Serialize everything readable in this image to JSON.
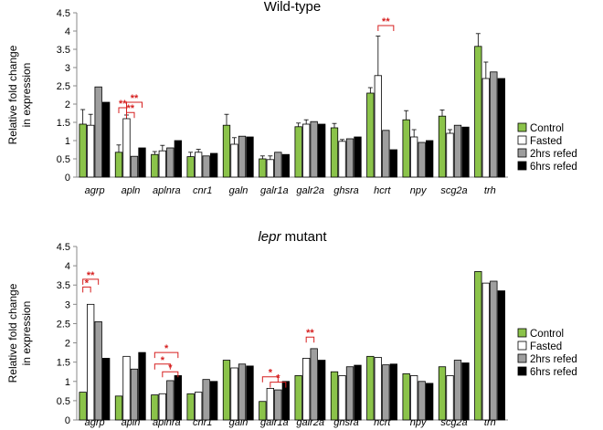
{
  "colors": {
    "control": "#8bc34a",
    "fasted": "#ffffff",
    "refed2": "#9e9e9e",
    "refed6": "#000000",
    "significance": "#d61f1f"
  },
  "chart_data": [
    {
      "type": "bar",
      "title": "Wild-type",
      "title_parts": [
        {
          "text": "Wild-type",
          "italic": false
        }
      ],
      "ylabel": "Relative fold change in expression",
      "ylabel_lines": [
        "Relative fold change",
        "in expression"
      ],
      "ylim": [
        0,
        4.5
      ],
      "yticks": [
        "0",
        "0.5",
        "1",
        "1.5",
        "2",
        "2.5",
        "3",
        "3.5",
        "4",
        "4.5"
      ],
      "categories": [
        "agrp",
        "apln",
        "aplnra",
        "cnr1",
        "galn",
        "galr1a",
        "galr2a",
        "ghsra",
        "hcrt",
        "npy",
        "scg2a",
        "trh"
      ],
      "legend": {
        "position": "right"
      },
      "series": [
        {
          "name": "Control",
          "color": "#8bc34a",
          "values": [
            1.45,
            0.68,
            0.62,
            0.56,
            1.42,
            0.5,
            1.38,
            1.35,
            2.3,
            1.57,
            1.67,
            3.58
          ],
          "errors": [
            0.4,
            0.2,
            0.08,
            0.12,
            0.3,
            0.08,
            0.1,
            0.12,
            0.15,
            0.25,
            0.17,
            0.35
          ]
        },
        {
          "name": "Fasted",
          "color": "#ffffff",
          "values": [
            1.42,
            1.6,
            0.72,
            0.68,
            0.9,
            0.48,
            1.45,
            0.98,
            2.78,
            1.1,
            1.2,
            2.7
          ],
          "errors": [
            0.3,
            0.1,
            0.15,
            0.08,
            0.18,
            0.1,
            0.12,
            0.05,
            1.08,
            0.2,
            0.1,
            0.45
          ]
        },
        {
          "name": "2hrs refed",
          "color": "#9e9e9e",
          "values": [
            2.47,
            0.57,
            0.8,
            0.58,
            1.12,
            0.68,
            1.52,
            1.05,
            1.28,
            0.95,
            1.42,
            2.88
          ]
        },
        {
          "name": "6hrs refed",
          "color": "#000000",
          "values": [
            2.05,
            0.8,
            1.0,
            0.65,
            1.1,
            0.62,
            1.45,
            1.1,
            0.75,
            1.0,
            1.37,
            2.7
          ]
        }
      ],
      "significance": [
        {
          "category": "apln",
          "from": 0,
          "to": 1,
          "label": "**",
          "y": 1.9
        },
        {
          "category": "apln",
          "from": 1,
          "to": 2,
          "label": "**",
          "y": 1.77
        },
        {
          "category": "apln",
          "from": 1,
          "to": 3,
          "label": "**",
          "y": 2.05
        },
        {
          "category": "hcrt",
          "from": 1,
          "to": 3,
          "label": "**",
          "y": 4.15
        }
      ]
    },
    {
      "type": "bar",
      "title": "lepr mutant",
      "title_parts": [
        {
          "text": "lepr",
          "italic": true
        },
        {
          "text": " mutant",
          "italic": false
        }
      ],
      "ylabel": "Relative fold change in expression",
      "ylabel_lines": [
        "Relative fold change",
        "in expression"
      ],
      "ylim": [
        0,
        4.5
      ],
      "yticks": [
        "0",
        "0.5",
        "1",
        "1.5",
        "2",
        "2.5",
        "3",
        "3.5",
        "4",
        "4.5"
      ],
      "categories": [
        "agrp",
        "apln",
        "aplnra",
        "cnr1",
        "galn",
        "galr1a",
        "galr2a",
        "ghsra",
        "hcrt",
        "npy",
        "scg2a",
        "trh"
      ],
      "legend": {
        "position": "right"
      },
      "series": [
        {
          "name": "Control",
          "color": "#8bc34a",
          "values": [
            0.72,
            0.62,
            0.65,
            0.68,
            1.55,
            0.48,
            1.15,
            1.25,
            1.65,
            1.2,
            1.38,
            3.85
          ]
        },
        {
          "name": "Fasted",
          "color": "#ffffff",
          "values": [
            3.0,
            1.65,
            0.68,
            0.72,
            1.35,
            0.82,
            1.6,
            1.15,
            1.62,
            1.15,
            1.15,
            3.55
          ]
        },
        {
          "name": "2hrs refed",
          "color": "#9e9e9e",
          "values": [
            2.55,
            1.32,
            1.02,
            1.05,
            1.45,
            0.78,
            1.85,
            1.38,
            1.43,
            1.0,
            1.55,
            3.6
          ]
        },
        {
          "name": "6hrs refed",
          "color": "#000000",
          "values": [
            1.6,
            1.75,
            1.15,
            1.0,
            1.4,
            1.0,
            1.55,
            1.42,
            1.45,
            0.95,
            1.48,
            3.35
          ]
        }
      ],
      "significance": [
        {
          "category": "agrp",
          "from": 0,
          "to": 1,
          "label": "*",
          "y": 3.45
        },
        {
          "category": "agrp",
          "from": 0,
          "to": 2,
          "label": "**",
          "y": 3.65
        },
        {
          "category": "aplnra",
          "from": 0,
          "to": 2,
          "label": "*",
          "y": 1.45
        },
        {
          "category": "aplnra",
          "from": 0,
          "to": 3,
          "label": "*",
          "y": 1.75
        },
        {
          "category": "aplnra",
          "from": 1,
          "to": 3,
          "label": "*",
          "y": 1.25
        },
        {
          "category": "galr1a",
          "from": 0,
          "to": 2,
          "label": "*",
          "y": 1.12
        },
        {
          "category": "galr1a",
          "from": 1,
          "to": 3,
          "label": "*",
          "y": 0.98
        },
        {
          "category": "galr2a",
          "from": 1,
          "to": 2,
          "label": "**",
          "y": 2.15
        }
      ]
    }
  ]
}
